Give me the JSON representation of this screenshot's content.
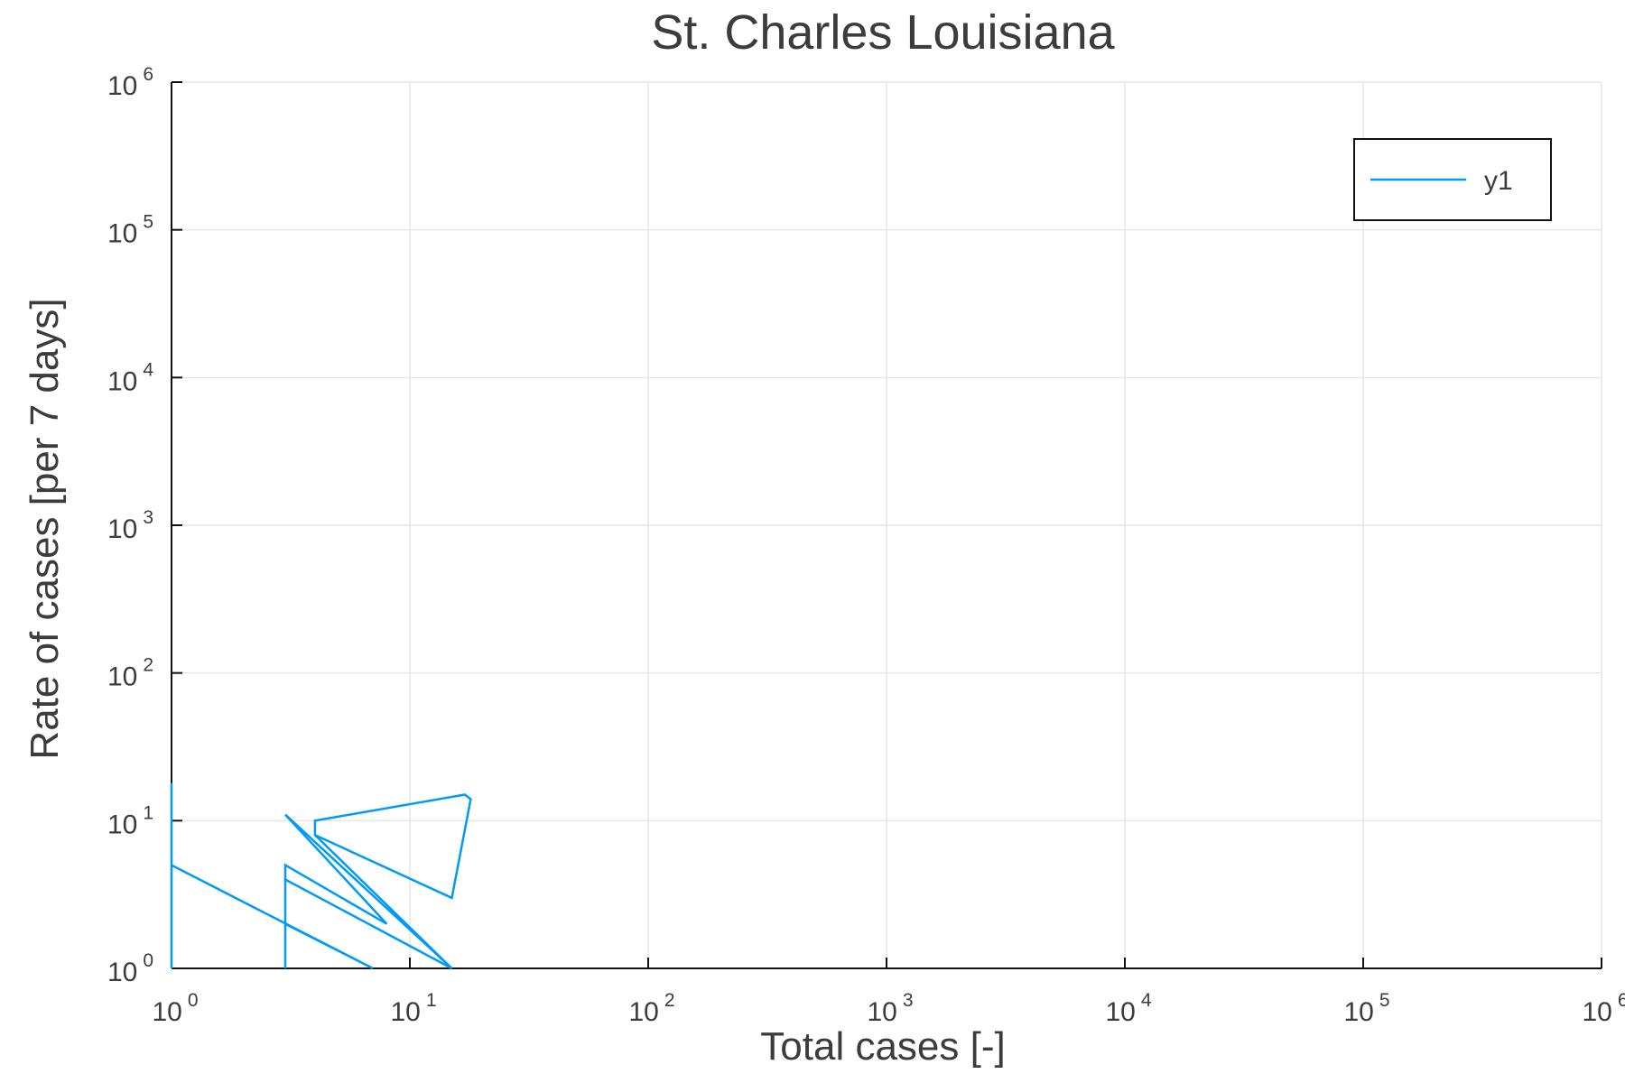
{
  "chart_data": {
    "type": "line",
    "title": "St. Charles Louisiana",
    "xlabel": "Total cases [-]",
    "ylabel": "Rate of cases [per 7 days]",
    "xscale": "log",
    "yscale": "log",
    "xlim": [
      1,
      1000000
    ],
    "ylim": [
      1,
      1000000
    ],
    "grid": true,
    "legend_position": "top-right",
    "x_ticks": [
      {
        "base": "10",
        "exp": "0"
      },
      {
        "base": "10",
        "exp": "1"
      },
      {
        "base": "10",
        "exp": "2"
      },
      {
        "base": "10",
        "exp": "3"
      },
      {
        "base": "10",
        "exp": "4"
      },
      {
        "base": "10",
        "exp": "5"
      },
      {
        "base": "10",
        "exp": "6"
      }
    ],
    "y_ticks": [
      {
        "base": "10",
        "exp": "0"
      },
      {
        "base": "10",
        "exp": "1"
      },
      {
        "base": "10",
        "exp": "2"
      },
      {
        "base": "10",
        "exp": "3"
      },
      {
        "base": "10",
        "exp": "4"
      },
      {
        "base": "10",
        "exp": "5"
      },
      {
        "base": "10",
        "exp": "6"
      }
    ],
    "series": [
      {
        "name": "y1",
        "color": "#009af9",
        "points": [
          [
            1,
            1
          ],
          [
            1,
            18
          ],
          [
            1,
            5
          ],
          [
            7,
            1
          ],
          [
            3,
            2
          ],
          [
            3,
            1
          ],
          [
            3,
            5
          ],
          [
            8,
            2
          ],
          [
            3,
            11
          ],
          [
            15,
            1
          ],
          [
            4,
            8
          ],
          [
            4,
            10
          ],
          [
            17,
            15
          ],
          [
            18,
            14
          ],
          [
            15,
            3
          ],
          [
            4,
            8
          ],
          [
            15,
            1
          ],
          [
            3,
            4
          ]
        ]
      }
    ]
  }
}
